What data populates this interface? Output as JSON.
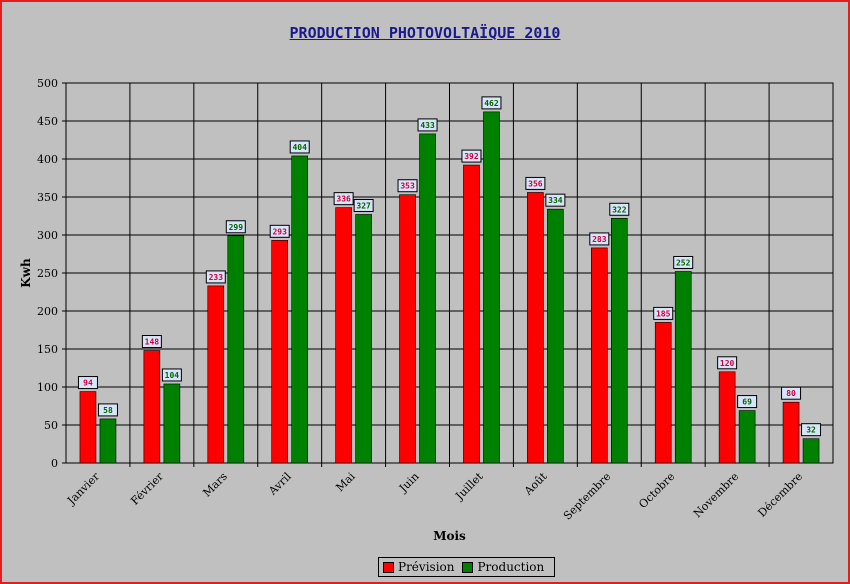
{
  "chart_data": {
    "type": "bar",
    "title": "PRODUCTION PHOTOVOLTAÏQUE 2010",
    "xlabel": "Mois",
    "ylabel": "Kwh",
    "ylim": [
      0,
      500
    ],
    "yticks": [
      0,
      50,
      100,
      150,
      200,
      250,
      300,
      350,
      400,
      450,
      500
    ],
    "categories": [
      "Janvier",
      "Février",
      "Mars",
      "Avril",
      "Mai",
      "Juin",
      "Juillet",
      "Août",
      "Septembre",
      "Octobre",
      "Novembre",
      "Décembre"
    ],
    "series": [
      {
        "name": "Prévision",
        "color": "#ff0000",
        "label_color": "#d0003c",
        "values": [
          94,
          148,
          233,
          293,
          336,
          353,
          392,
          356,
          283,
          185,
          120,
          80
        ]
      },
      {
        "name": "Production",
        "color": "#008000",
        "label_color": "#006400",
        "values": [
          58,
          104,
          299,
          404,
          327,
          433,
          462,
          334,
          322,
          252,
          69,
          32
        ]
      }
    ],
    "grid": true,
    "legend_position": "bottom-center"
  }
}
